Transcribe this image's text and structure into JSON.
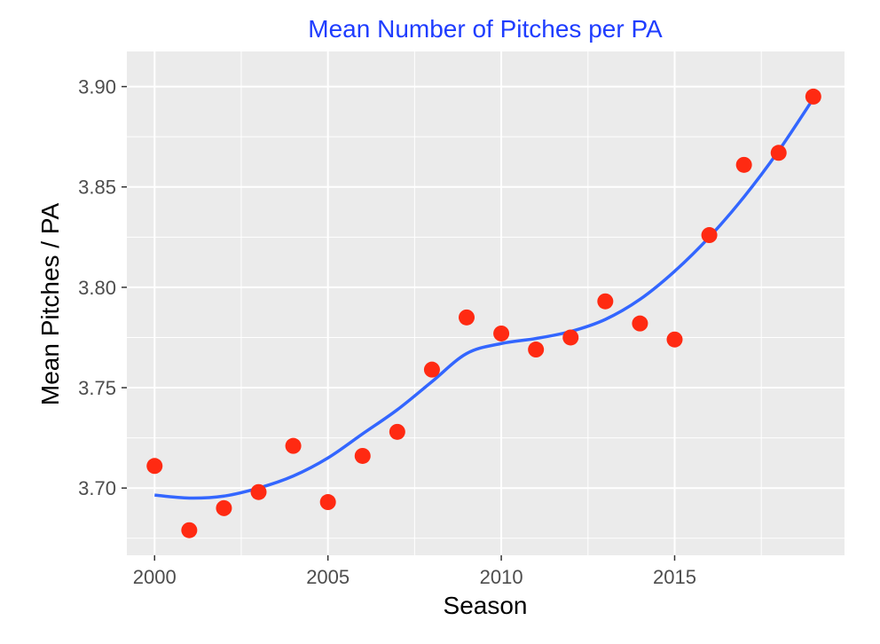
{
  "chart_data": {
    "type": "scatter",
    "title": "Mean Number of Pitches per PA",
    "xlabel": "Season",
    "ylabel": "Mean Pitches / PA",
    "xlim": [
      1999.2,
      2019.9
    ],
    "ylim": [
      3.6665,
      3.9175
    ],
    "x_ticks": [
      2000,
      2005,
      2010,
      2015
    ],
    "x_tick_labels": [
      "2000",
      "2005",
      "2010",
      "2015"
    ],
    "y_ticks": [
      3.7,
      3.75,
      3.8,
      3.85,
      3.9
    ],
    "y_tick_labels": [
      "3.70",
      "3.75",
      "3.80",
      "3.85",
      "3.90"
    ],
    "grid": true,
    "points": {
      "x": [
        2000,
        2001,
        2002,
        2003,
        2004,
        2005,
        2006,
        2007,
        2008,
        2009,
        2010,
        2011,
        2012,
        2013,
        2014,
        2015,
        2016,
        2017,
        2018,
        2019
      ],
      "y": [
        3.711,
        3.679,
        3.69,
        3.698,
        3.721,
        3.693,
        3.716,
        3.728,
        3.759,
        3.785,
        3.777,
        3.769,
        3.775,
        3.793,
        3.782,
        3.774,
        3.826,
        3.861,
        3.867,
        3.895
      ],
      "color": "#ff2a12"
    },
    "smooth": {
      "x": [
        2000,
        2001,
        2002,
        2003,
        2004,
        2005,
        2006,
        2007,
        2008,
        2009,
        2010,
        2011,
        2012,
        2013,
        2014,
        2015,
        2016,
        2017,
        2018,
        2019
      ],
      "y": [
        3.6965,
        3.695,
        3.696,
        3.7,
        3.706,
        3.715,
        3.727,
        3.739,
        3.753,
        3.767,
        3.772,
        3.7745,
        3.778,
        3.784,
        3.794,
        3.808,
        3.825,
        3.845,
        3.868,
        3.894
      ],
      "color": "#3366ff"
    },
    "panel_background": "#ebebeb",
    "grid_color": "#ffffff"
  }
}
